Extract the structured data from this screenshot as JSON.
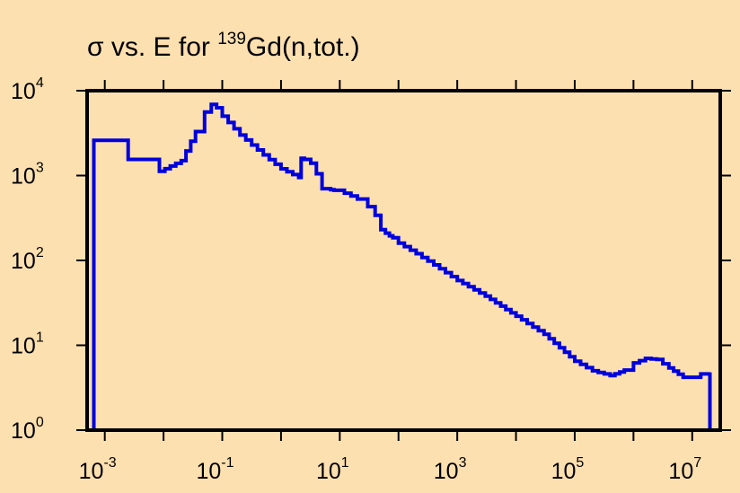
{
  "chart_data": {
    "type": "line",
    "title_parts": {
      "prefix": "σ vs. E for ",
      "superscript": "139",
      "suffix": "Gd(n,tot.)"
    },
    "xlabel": "",
    "ylabel": "",
    "xscale": "log",
    "yscale": "log",
    "xlim": [
      0.0005,
      30000000
    ],
    "ylim": [
      1,
      10000
    ],
    "grid": false,
    "legend": "none",
    "line_color": "#0000dd",
    "x_ticks": [
      {
        "base": "10",
        "exp": "-3",
        "value": 0.001
      },
      {
        "base": "10",
        "exp": "-1",
        "value": 0.1
      },
      {
        "base": "10",
        "exp": "1",
        "value": 10
      },
      {
        "base": "10",
        "exp": "3",
        "value": 1000
      },
      {
        "base": "10",
        "exp": "5",
        "value": 100000
      },
      {
        "base": "10",
        "exp": "7",
        "value": 10000000
      }
    ],
    "y_ticks": [
      {
        "base": "10",
        "exp": "0",
        "value": 1
      },
      {
        "base": "10",
        "exp": "1",
        "value": 10
      },
      {
        "base": "10",
        "exp": "2",
        "value": 100
      },
      {
        "base": "10",
        "exp": "3",
        "value": 1000
      },
      {
        "base": "10",
        "exp": "4",
        "value": 10000
      }
    ],
    "series": [
      {
        "x": [
          0.00065,
          0.00065,
          0.0025,
          0.0025,
          0.0085,
          0.0085,
          0.02,
          0.02,
          0.035,
          0.05,
          0.065,
          0.08,
          0.1,
          0.2,
          0.5,
          1,
          2,
          2.2,
          2.5,
          3.2,
          4,
          5,
          7,
          8,
          12,
          20,
          30,
          40,
          50,
          60,
          70,
          80,
          100,
          200,
          500,
          1000,
          3000,
          10000,
          30000,
          100000,
          200000,
          400000,
          700000,
          1000000,
          1600000,
          2500000,
          4000000,
          7000000,
          10000000,
          14000000,
          20000000,
          20000000
        ],
        "y": [
          1,
          2600,
          2600,
          1550,
          1550,
          1120,
          1500,
          1500,
          3300,
          5600,
          6900,
          6300,
          5000,
          3000,
          1750,
          1200,
          950,
          1600,
          1550,
          1400,
          1050,
          700,
          680,
          670,
          620,
          530,
          430,
          340,
          230,
          210,
          195,
          185,
          160,
          120,
          80,
          58,
          38,
          22,
          13.5,
          6.5,
          5.0,
          4.4,
          5.1,
          6.2,
          7.0,
          6.8,
          5.4,
          4.2,
          4.2,
          4.6,
          4.8,
          1
        ]
      }
    ]
  }
}
